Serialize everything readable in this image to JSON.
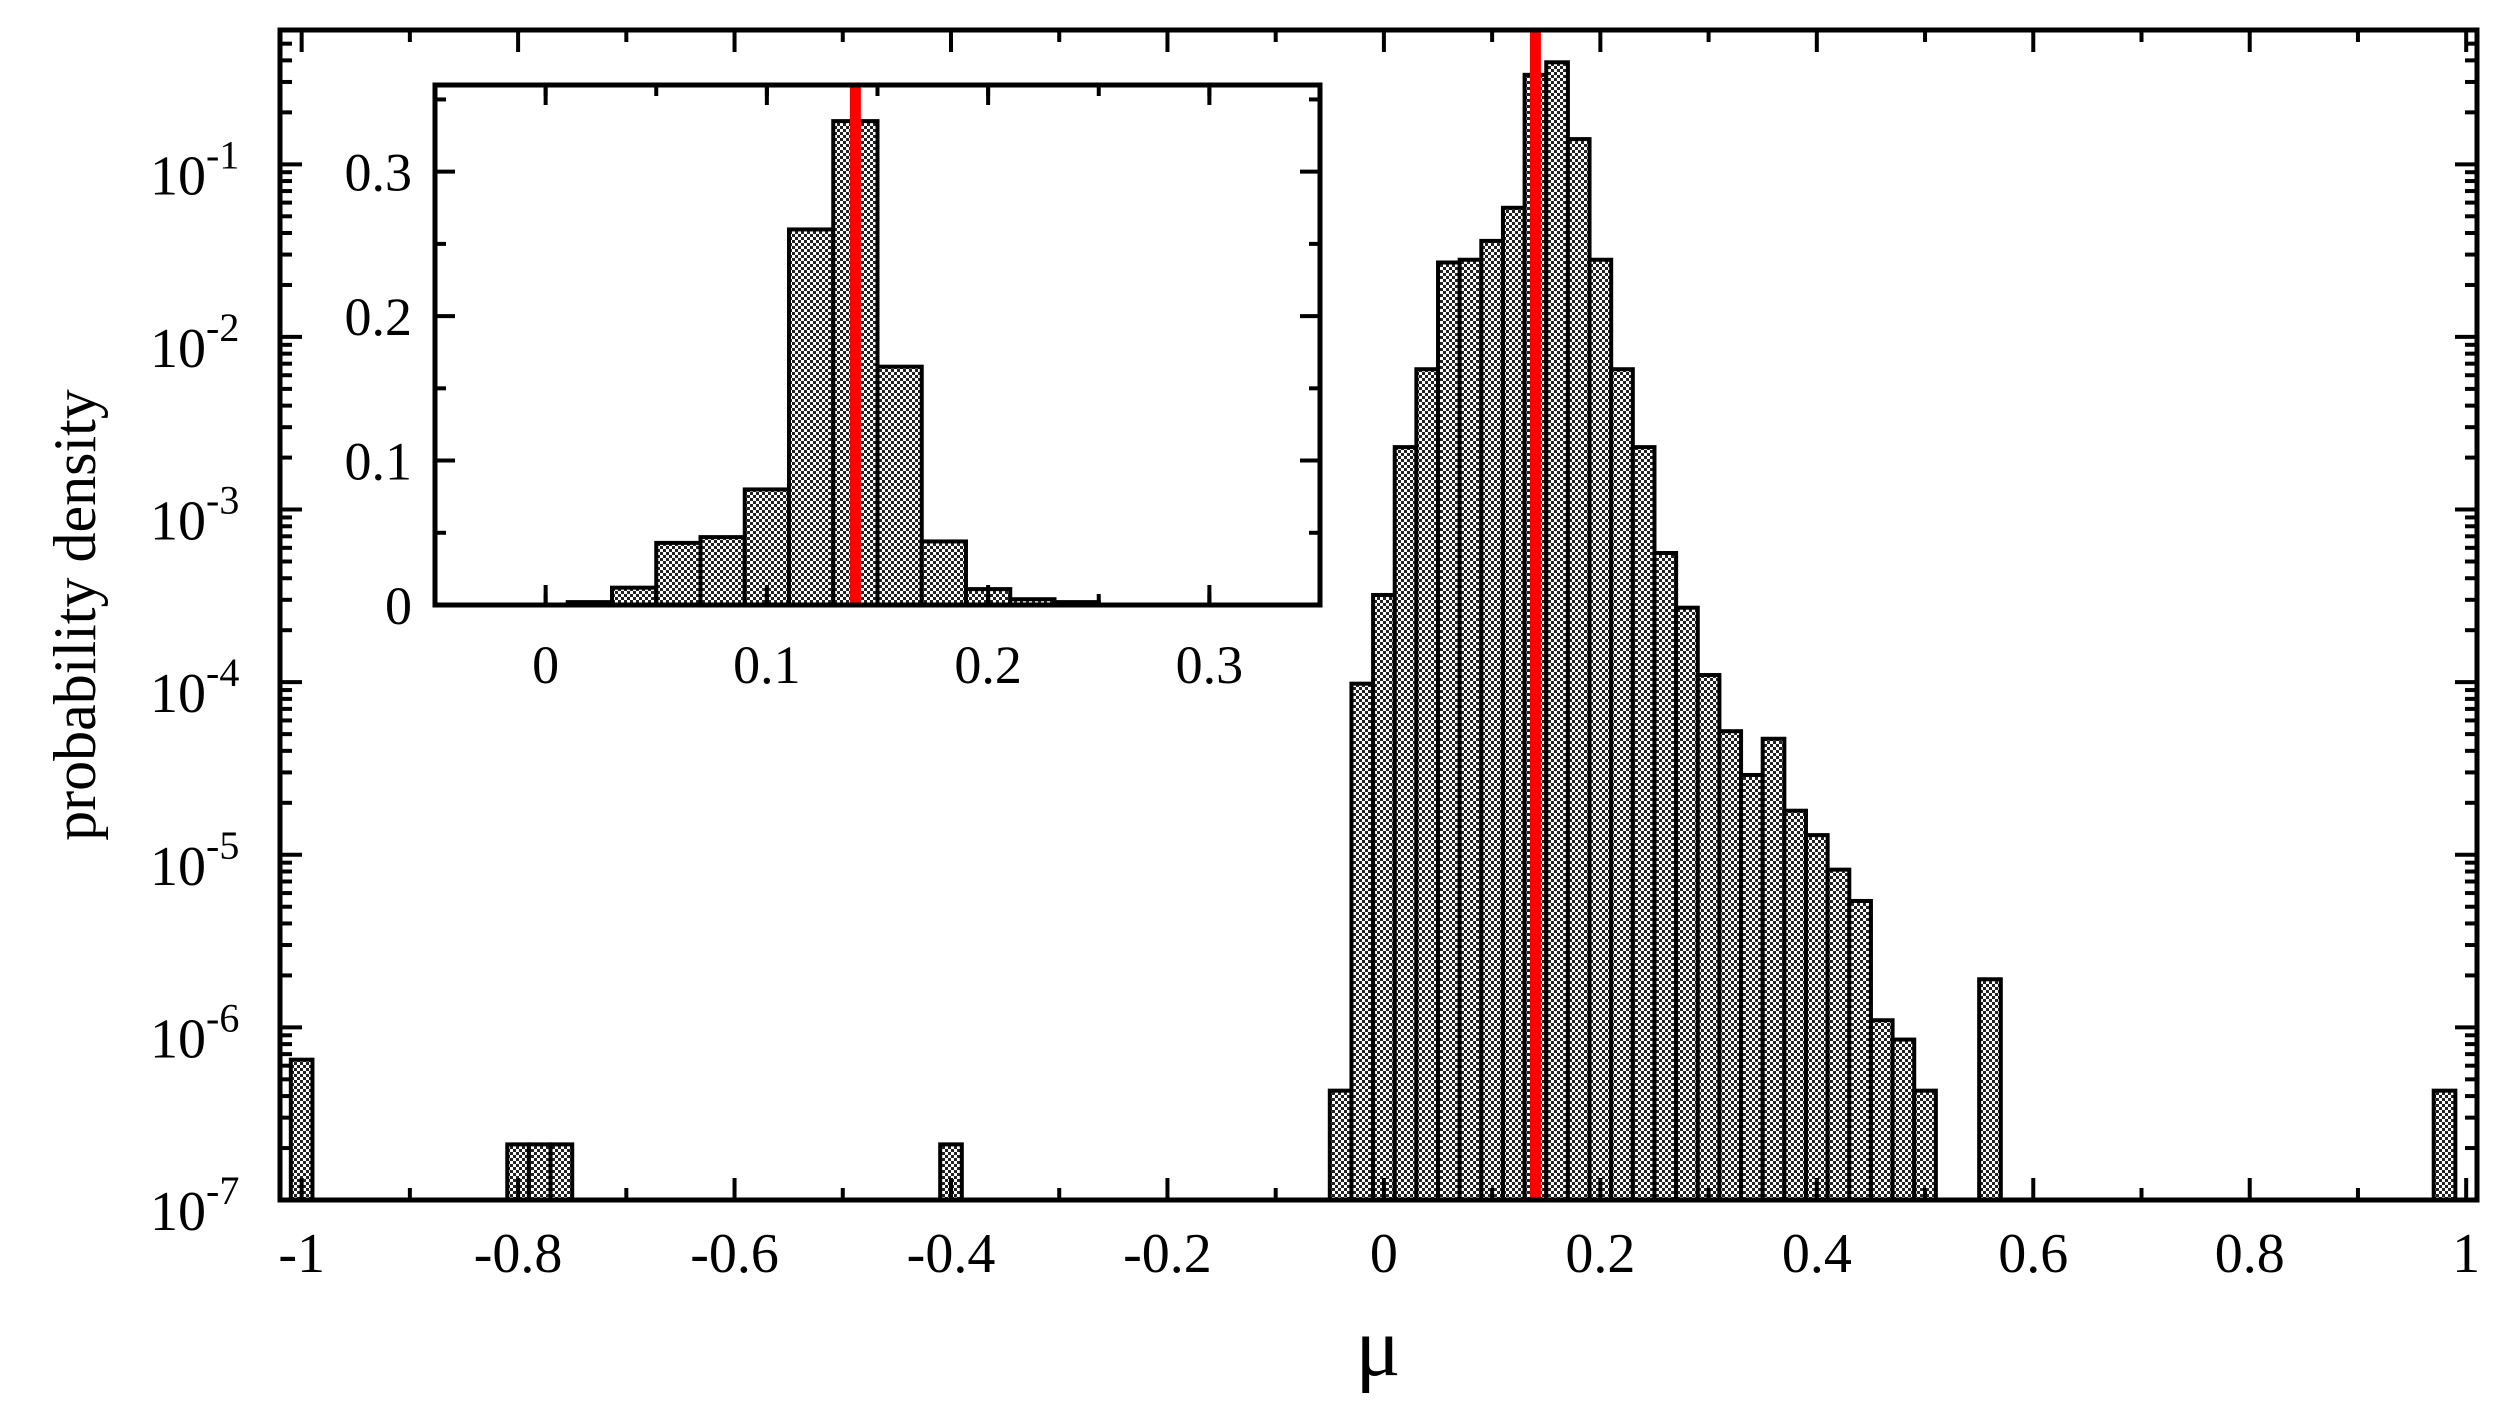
{
  "chart_data": [
    {
      "type": "bar",
      "xlabel": "μ",
      "ylabel": "probability density",
      "xscale": "linear",
      "yscale": "log",
      "xlim": [
        -1.02,
        1.01
      ],
      "ylim": [
        1e-07,
        0.6
      ],
      "xticks": [
        -1,
        -0.8,
        -0.6,
        -0.4,
        -0.2,
        0,
        0.2,
        0.4,
        0.6,
        0.8,
        1
      ],
      "xtick_labels": [
        "-1",
        "-0.8",
        "-0.6",
        "-0.4",
        "-0.2",
        "0",
        "0.2",
        "0.4",
        "0.6",
        "0.8",
        "1"
      ],
      "yticks": [
        1e-07,
        1e-06,
        1e-05,
        0.0001,
        0.001,
        0.01,
        0.1
      ],
      "ytick_labels": [
        {
          "base": "10",
          "exp": "-7"
        },
        {
          "base": "10",
          "exp": "-6"
        },
        {
          "base": "10",
          "exp": "-5"
        },
        {
          "base": "10",
          "exp": "-4"
        },
        {
          "base": "10",
          "exp": "-3"
        },
        {
          "base": "10",
          "exp": "-2"
        },
        {
          "base": "10",
          "exp": "-1"
        }
      ],
      "grid": false,
      "bin_width": 0.02,
      "x": [
        -1.0,
        -0.8,
        -0.78,
        -0.76,
        -0.4,
        -0.04,
        -0.02,
        0.0,
        0.02,
        0.04,
        0.06,
        0.08,
        0.1,
        0.12,
        0.14,
        0.16,
        0.18,
        0.2,
        0.22,
        0.24,
        0.26,
        0.28,
        0.3,
        0.32,
        0.34,
        0.36,
        0.38,
        0.4,
        0.42,
        0.44,
        0.46,
        0.48,
        0.5,
        0.56,
        0.98
      ],
      "values": [
        6.5e-07,
        2.1e-07,
        2.1e-07,
        2.1e-07,
        2.1e-07,
        4.3e-07,
        9.8e-05,
        0.00032,
        0.0023,
        0.0065,
        0.027,
        0.028,
        0.036,
        0.056,
        0.33,
        0.39,
        0.14,
        0.028,
        0.0065,
        0.0023,
        0.00056,
        0.00027,
        0.00011,
        5.2e-05,
        2.9e-05,
        4.7e-05,
        1.8e-05,
        1.3e-05,
        8.2e-06,
        5.4e-06,
        1.1e-06,
        8.5e-07,
        4.3e-07,
        1.9e-06,
        4.3e-07
      ],
      "reference_line": {
        "x": 0.14,
        "color": "#ff0000"
      },
      "bar_color": "#888888"
    },
    {
      "type": "bar",
      "role": "inset",
      "xscale": "linear",
      "yscale": "linear",
      "xlim": [
        -0.05,
        0.35
      ],
      "ylim": [
        0,
        0.36
      ],
      "xticks": [
        0,
        0.1,
        0.2,
        0.3
      ],
      "xtick_labels": [
        "0",
        "0.1",
        "0.2",
        "0.3"
      ],
      "yticks": [
        0,
        0.1,
        0.2,
        0.3
      ],
      "ytick_labels": [
        "0",
        "0.1",
        "0.2",
        "0.3"
      ],
      "grid": false,
      "bin_width": 0.02,
      "x": [
        0.02,
        0.04,
        0.06,
        0.08,
        0.1,
        0.12,
        0.14,
        0.16,
        0.18,
        0.2,
        0.22,
        0.24
      ],
      "values": [
        0.002,
        0.012,
        0.043,
        0.047,
        0.08,
        0.26,
        0.335,
        0.165,
        0.044,
        0.011,
        0.004,
        0.002
      ],
      "reference_line": {
        "x": 0.14,
        "color": "#ff0000"
      },
      "bar_color": "#888888"
    }
  ]
}
